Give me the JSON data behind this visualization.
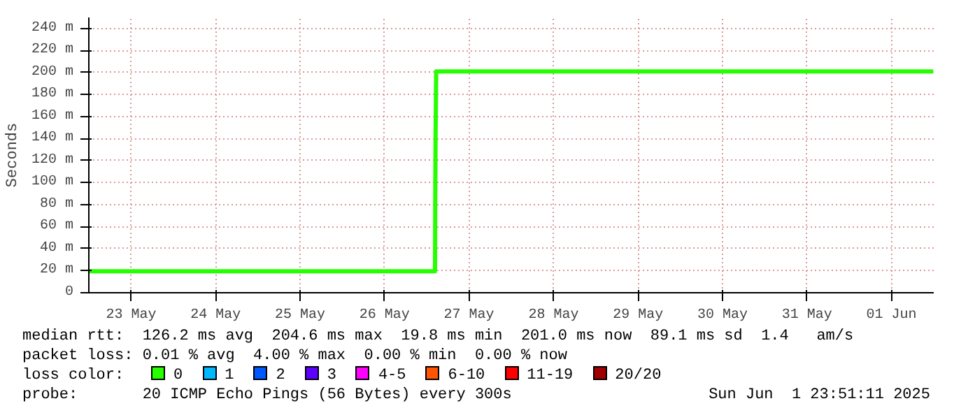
{
  "chart_data": {
    "type": "line",
    "ylabel": "Seconds",
    "xlim": [
      "2025-05-23T00:00",
      "2025-06-02T00:00"
    ],
    "ylim": [
      0,
      250
    ],
    "xticks": [
      {
        "value": "2025-05-23T12:00",
        "label": "23 May"
      },
      {
        "value": "2025-05-24T12:00",
        "label": "24 May"
      },
      {
        "value": "2025-05-25T12:00",
        "label": "25 May"
      },
      {
        "value": "2025-05-26T12:00",
        "label": "26 May"
      },
      {
        "value": "2025-05-27T12:00",
        "label": "27 May"
      },
      {
        "value": "2025-05-28T12:00",
        "label": "28 May"
      },
      {
        "value": "2025-05-29T12:00",
        "label": "29 May"
      },
      {
        "value": "2025-05-30T12:00",
        "label": "30 May"
      },
      {
        "value": "2025-05-31T12:00",
        "label": "31 May"
      },
      {
        "value": "2025-06-01T12:00",
        "label": "01 Jun"
      }
    ],
    "yticks": [
      0,
      {
        "value": 20,
        "label": "20 m"
      },
      {
        "value": 40,
        "label": "40 m"
      },
      {
        "value": 60,
        "label": "60 m"
      },
      {
        "value": 80,
        "label": "80 m"
      },
      {
        "value": 100,
        "label": "100 m"
      },
      {
        "value": 120,
        "label": "120 m"
      },
      {
        "value": 140,
        "label": "140 m"
      },
      {
        "value": 160,
        "label": "160 m"
      },
      {
        "value": 180,
        "label": "180 m"
      },
      {
        "value": 200,
        "label": "200 m"
      },
      {
        "value": 220,
        "label": "220 m"
      },
      {
        "value": 240,
        "label": "240 m"
      }
    ],
    "grid": true,
    "legend": "bottom",
    "legend_title": "loss color:",
    "series": [
      {
        "name": "0",
        "color": "#26ff00",
        "x": [
          "2025-05-23T00:00",
          "2025-05-27T02:20",
          "2025-05-27T02:25",
          "2025-05-27T02:30",
          "2025-05-27T02:40",
          "2025-06-01T23:50"
        ],
        "values": [
          19.5,
          19.5,
          97,
          143,
          201,
          201
        ]
      },
      {
        "name": "1",
        "color": "#00b8ff"
      },
      {
        "name": "2",
        "color": "#0059ff"
      },
      {
        "name": "3",
        "color": "#5e00ff"
      },
      {
        "name": "4-5",
        "color": "#ff00ff"
      },
      {
        "name": "6-10",
        "color": "#ff5500"
      },
      {
        "name": "11-19",
        "color": "#ff0000"
      },
      {
        "name": "20/20",
        "color": "#a10000"
      }
    ],
    "annotations": [
      "median rtt:  126.2 ms avg  204.6 ms max  19.8 ms min  201.0 ms now  89.1 ms sd  1.4   am/s",
      "packet loss: 0.01 % avg  4.00 % max  0.00 % min  0.00 % now",
      "probe:       20 ICMP Echo Pings (56 Bytes) every 300s",
      "Sun Jun  1 23:51:11 2025"
    ]
  }
}
